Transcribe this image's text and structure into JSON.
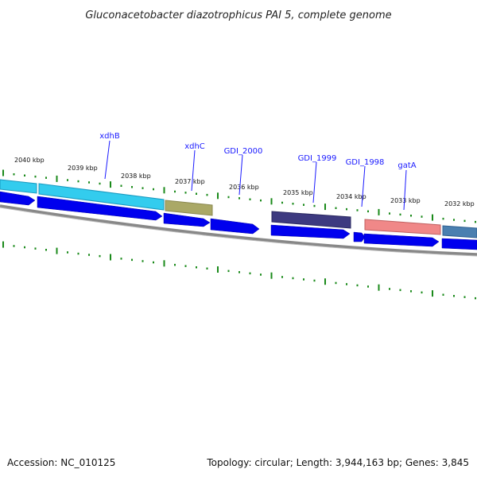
{
  "title": "Gluconacetobacter diazotrophicus PAI 5, complete genome",
  "footer": {
    "accession": "Accession: NC_010125",
    "summary": "Topology: circular; Length: 3,944,163 bp; Genes: 3,845"
  },
  "tick_labels": [
    {
      "kbp": 2040,
      "label": "2040 kbp"
    },
    {
      "kbp": 2039,
      "label": "2039 kbp"
    },
    {
      "kbp": 2038,
      "label": "2038 kbp"
    },
    {
      "kbp": 2037,
      "label": "2037 kbp"
    },
    {
      "kbp": 2036,
      "label": "2036 kbp"
    },
    {
      "kbp": 2035,
      "label": "2035 kbp"
    },
    {
      "kbp": 2034,
      "label": "2034 kbp"
    },
    {
      "kbp": 2033,
      "label": "2033 kbp"
    },
    {
      "kbp": 2032,
      "label": "2032 kbp"
    }
  ],
  "gene_labels": [
    {
      "name": "xdhB"
    },
    {
      "name": "xdhC"
    },
    {
      "name": "GDI_2000"
    },
    {
      "name": "GDI_1999"
    },
    {
      "name": "GDI_1998"
    },
    {
      "name": "gatA"
    }
  ],
  "colors": {
    "cds_arrow": "#0000ee",
    "tick": "#1a8a1a",
    "backbone": "#888888",
    "label_line": "#1a1aff",
    "xdhB": "#33ccee",
    "xdhC": "#aaa866",
    "GDI_1999": "#3d3a80",
    "gatA": "#f08888",
    "right_feature": "#4a7fb0",
    "left_feature": "#33ccee"
  }
}
